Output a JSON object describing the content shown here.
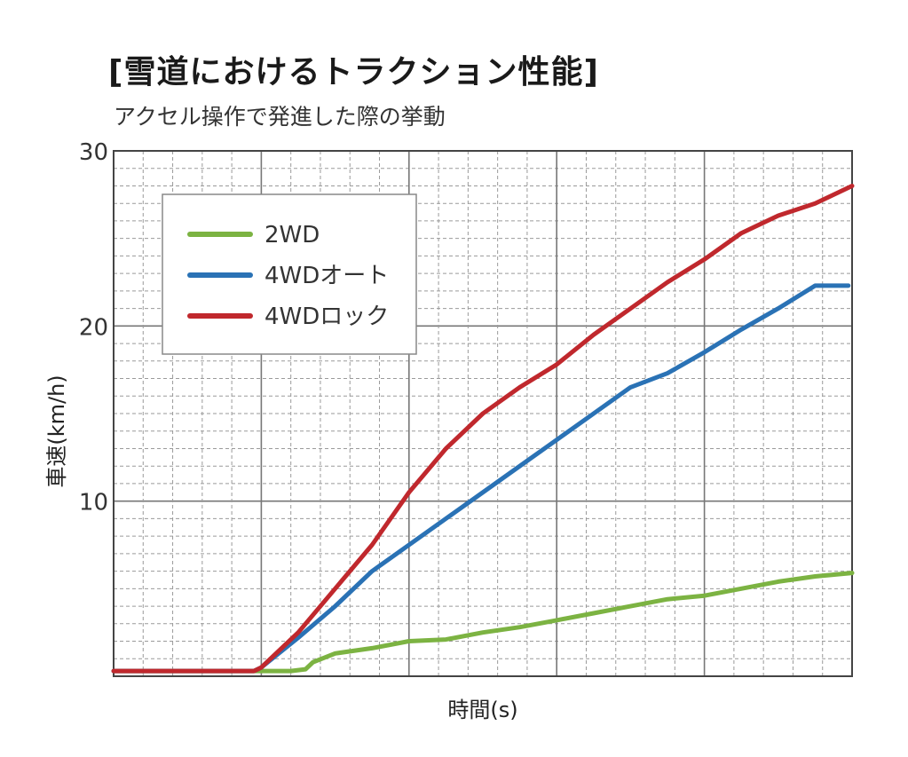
{
  "title": "[雪道におけるトラクション性能]",
  "subtitle": "アクセル操作で発進した際の挙動",
  "chart_data": {
    "type": "line",
    "xlabel": "時間(s)",
    "ylabel": "車速(km/h)",
    "ylim": [
      0,
      30
    ],
    "xlim": [
      0,
      100
    ],
    "y_ticks": [
      "10",
      "20",
      "30"
    ],
    "grid": true,
    "legend_position": "top-left",
    "series": [
      {
        "name": "2WD",
        "color": "#7cb342",
        "x": [
          0,
          15,
          20,
          24,
          26,
          27,
          30,
          35,
          40,
          45,
          50,
          55,
          60,
          65,
          70,
          75,
          80,
          85,
          90,
          95,
          100
        ],
        "y": [
          0.3,
          0.3,
          0.3,
          0.3,
          0.4,
          0.8,
          1.3,
          1.6,
          2.0,
          2.1,
          2.5,
          2.8,
          3.2,
          3.6,
          4.0,
          4.4,
          4.6,
          5.0,
          5.4,
          5.7,
          5.9
        ]
      },
      {
        "name": "4WDオート",
        "color": "#2a72b5",
        "x": [
          0,
          15,
          19,
          20,
          25,
          30,
          35,
          40,
          45,
          50,
          55,
          60,
          65,
          70,
          75,
          80,
          85,
          90,
          95,
          99.5
        ],
        "y": [
          0.3,
          0.3,
          0.3,
          0.5,
          2.2,
          4.0,
          6.0,
          7.5,
          9.0,
          10.5,
          12.0,
          13.5,
          15.0,
          16.5,
          17.3,
          18.5,
          19.8,
          21.0,
          22.3,
          22.3
        ]
      },
      {
        "name": "4WDロック",
        "color": "#c0282d",
        "x": [
          0,
          15,
          19,
          20,
          25,
          30,
          35,
          40,
          45,
          50,
          55,
          60,
          65,
          70,
          75,
          80,
          85,
          90,
          95,
          100
        ],
        "y": [
          0.3,
          0.3,
          0.3,
          0.5,
          2.5,
          5.0,
          7.5,
          10.5,
          13.0,
          15.0,
          16.5,
          17.8,
          19.5,
          21.0,
          22.5,
          23.8,
          25.3,
          26.3,
          27.0,
          28.0
        ]
      }
    ]
  }
}
